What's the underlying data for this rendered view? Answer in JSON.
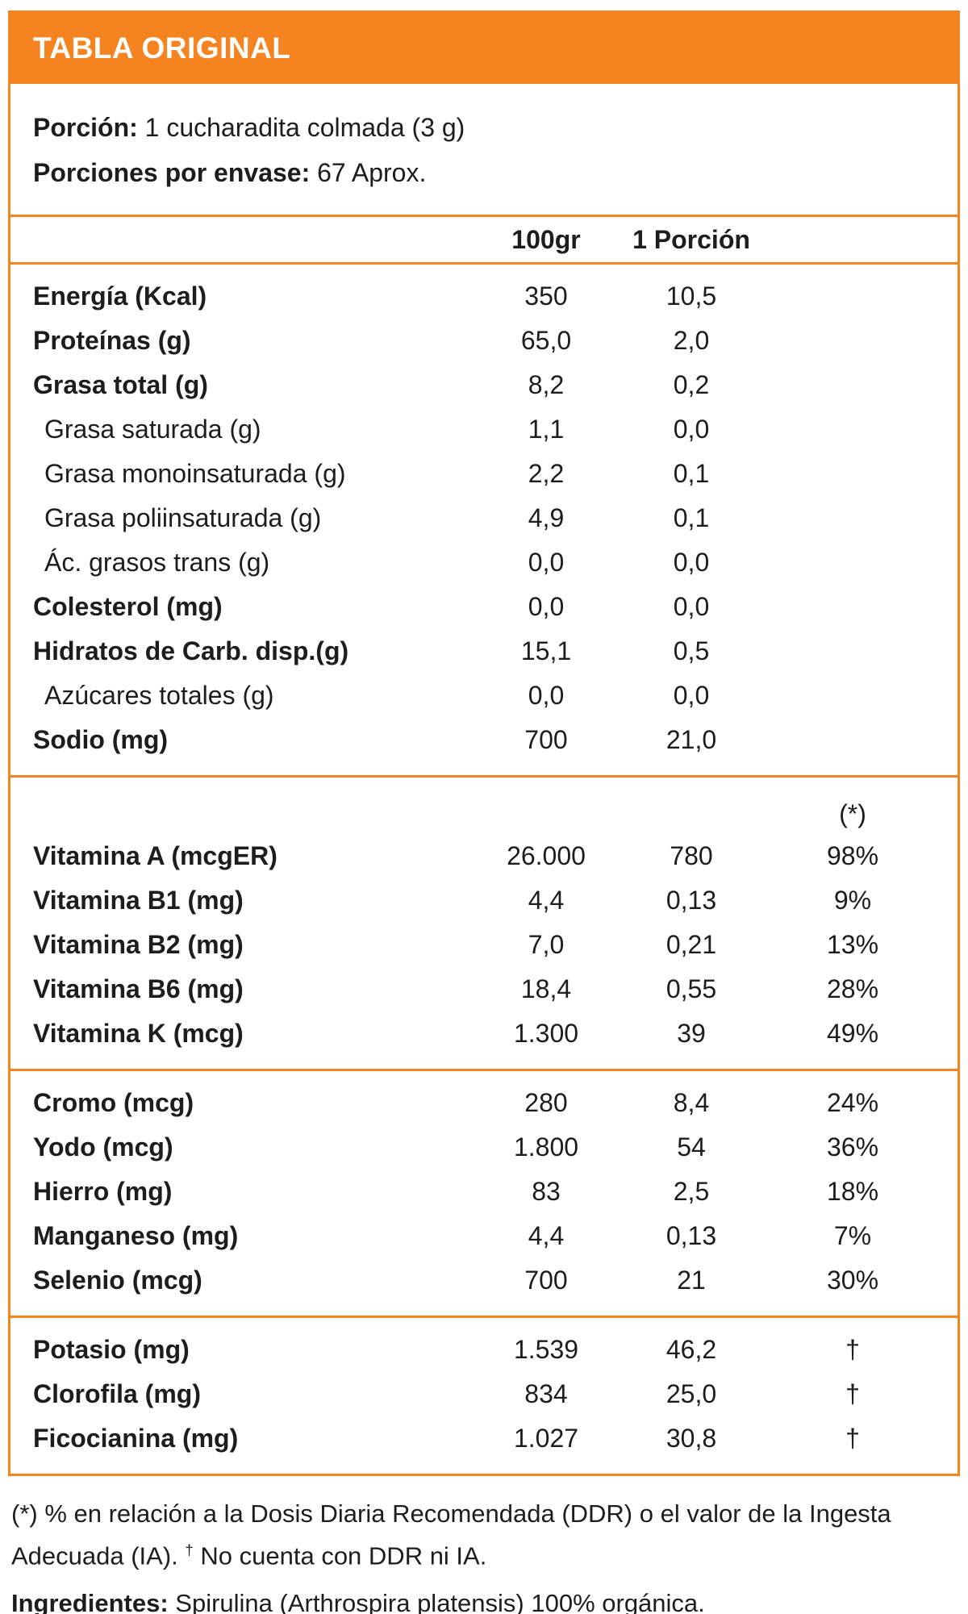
{
  "header": {
    "title": "TABLA ORIGINAL",
    "accent_color": "#f5831f",
    "title_text_color": "#ffffff"
  },
  "serving": {
    "label": "Porción:",
    "value": "1 cucharadita colmada (3 g)"
  },
  "servings_per_container": {
    "label": "Porciones por envase:",
    "value": "67 Aprox."
  },
  "columns": {
    "per_100g": "100gr",
    "per_serving": "1 Porción"
  },
  "sections": [
    {
      "rows": [
        {
          "label": "Energía (Kcal)",
          "bold": true,
          "indent": false,
          "per_100g": "350",
          "per_serving": "10,5",
          "pct": ""
        },
        {
          "label": "Proteínas (g)",
          "bold": true,
          "indent": false,
          "per_100g": "65,0",
          "per_serving": "2,0",
          "pct": ""
        },
        {
          "label": "Grasa total (g)",
          "bold": true,
          "indent": false,
          "per_100g": "8,2",
          "per_serving": "0,2",
          "pct": ""
        },
        {
          "label": "Grasa saturada (g)",
          "bold": false,
          "indent": true,
          "per_100g": "1,1",
          "per_serving": "0,0",
          "pct": ""
        },
        {
          "label": "Grasa monoinsaturada (g)",
          "bold": false,
          "indent": true,
          "per_100g": "2,2",
          "per_serving": "0,1",
          "pct": ""
        },
        {
          "label": "Grasa poliinsaturada (g)",
          "bold": false,
          "indent": true,
          "per_100g": "4,9",
          "per_serving": "0,1",
          "pct": ""
        },
        {
          "label": "Ác. grasos trans (g)",
          "bold": false,
          "indent": true,
          "per_100g": "0,0",
          "per_serving": "0,0",
          "pct": ""
        },
        {
          "label": "Colesterol (mg)",
          "bold": true,
          "indent": false,
          "per_100g": "0,0",
          "per_serving": "0,0",
          "pct": ""
        },
        {
          "label": "Hidratos de Carb. disp.(g)",
          "bold": true,
          "indent": false,
          "per_100g": "15,1",
          "per_serving": "0,5",
          "pct": ""
        },
        {
          "label": "Azúcares totales (g)",
          "bold": false,
          "indent": true,
          "per_100g": "0,0",
          "per_serving": "0,0",
          "pct": ""
        },
        {
          "label": "Sodio (mg)",
          "bold": true,
          "indent": false,
          "per_100g": "700",
          "per_serving": "21,0",
          "pct": ""
        }
      ]
    },
    {
      "pct_header": "(*)",
      "rows": [
        {
          "label": "Vitamina A (mcgER)",
          "bold": true,
          "indent": false,
          "per_100g": "26.000",
          "per_serving": "780",
          "pct": "98%"
        },
        {
          "label": "Vitamina B1 (mg)",
          "bold": true,
          "indent": false,
          "per_100g": "4,4",
          "per_serving": "0,13",
          "pct": "9%"
        },
        {
          "label": "Vitamina B2 (mg)",
          "bold": true,
          "indent": false,
          "per_100g": "7,0",
          "per_serving": "0,21",
          "pct": "13%"
        },
        {
          "label": "Vitamina B6 (mg)",
          "bold": true,
          "indent": false,
          "per_100g": "18,4",
          "per_serving": "0,55",
          "pct": "28%"
        },
        {
          "label": "Vitamina K (mcg)",
          "bold": true,
          "indent": false,
          "per_100g": "1.300",
          "per_serving": "39",
          "pct": "49%"
        }
      ]
    },
    {
      "rows": [
        {
          "label": "Cromo (mcg)",
          "bold": true,
          "indent": false,
          "per_100g": "280",
          "per_serving": "8,4",
          "pct": "24%"
        },
        {
          "label": "Yodo (mcg)",
          "bold": true,
          "indent": false,
          "per_100g": "1.800",
          "per_serving": "54",
          "pct": "36%"
        },
        {
          "label": "Hierro (mg)",
          "bold": true,
          "indent": false,
          "per_100g": "83",
          "per_serving": "2,5",
          "pct": "18%"
        },
        {
          "label": "Manganeso (mg)",
          "bold": true,
          "indent": false,
          "per_100g": "4,4",
          "per_serving": "0,13",
          "pct": "7%"
        },
        {
          "label": "Selenio (mcg)",
          "bold": true,
          "indent": false,
          "per_100g": "700",
          "per_serving": "21",
          "pct": "30%"
        }
      ]
    },
    {
      "rows": [
        {
          "label": "Potasio (mg)",
          "bold": true,
          "indent": false,
          "per_100g": "1.539",
          "per_serving": "46,2",
          "pct": "†"
        },
        {
          "label": "Clorofila (mg)",
          "bold": true,
          "indent": false,
          "per_100g": "834",
          "per_serving": "25,0",
          "pct": "†"
        },
        {
          "label": "Ficocianina (mg)",
          "bold": true,
          "indent": false,
          "per_100g": "1.027",
          "per_serving": "30,8",
          "pct": "†"
        }
      ]
    }
  ],
  "footnote": {
    "part1": "(*) % en relación a la Dosis Diaria Recomendada (DDR) o el valor de la Ingesta Adecuada (IA).",
    "dagger": "†",
    "part2": "No cuenta con DDR ni IA."
  },
  "ingredients": {
    "label": "Ingredientes:",
    "value": "Spirulina (Arthrospira platensis) 100% orgánica."
  }
}
